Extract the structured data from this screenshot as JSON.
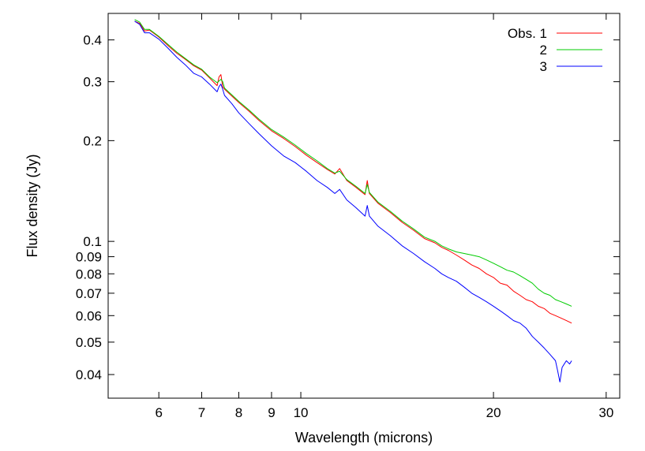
{
  "chart_data": {
    "type": "line",
    "title": "",
    "xlabel": "Wavelength (microns)",
    "ylabel": "Flux density (Jy)",
    "xscale": "log",
    "yscale": "log",
    "xlim": [
      5.0,
      31.5
    ],
    "ylim": [
      0.034,
      0.48
    ],
    "grid": false,
    "legend_position": "top-right",
    "xticks": [
      {
        "value": 6,
        "label": "6"
      },
      {
        "value": 7,
        "label": "7"
      },
      {
        "value": 8,
        "label": "8"
      },
      {
        "value": 9,
        "label": "9"
      },
      {
        "value": 10,
        "label": "10"
      },
      {
        "value": 20,
        "label": "20"
      },
      {
        "value": 30,
        "label": "30"
      }
    ],
    "yticks": [
      {
        "value": 0.04,
        "label": "0.04"
      },
      {
        "value": 0.05,
        "label": "0.05"
      },
      {
        "value": 0.06,
        "label": "0.06"
      },
      {
        "value": 0.07,
        "label": "0.07"
      },
      {
        "value": 0.08,
        "label": "0.08"
      },
      {
        "value": 0.09,
        "label": "0.09"
      },
      {
        "value": 0.1,
        "label": "0.1"
      },
      {
        "value": 0.2,
        "label": "0.2"
      },
      {
        "value": 0.3,
        "label": "0.3"
      },
      {
        "value": 0.4,
        "label": "0.4"
      }
    ],
    "series": [
      {
        "name": "Obs. 1",
        "color": "#ff0000",
        "x": [
          5.5,
          5.6,
          5.7,
          5.8,
          6.0,
          6.2,
          6.4,
          6.6,
          6.8,
          7.0,
          7.2,
          7.4,
          7.45,
          7.5,
          7.55,
          7.6,
          7.8,
          8.0,
          8.3,
          8.6,
          9.0,
          9.4,
          9.8,
          10.2,
          10.6,
          11.0,
          11.3,
          11.5,
          11.8,
          12.2,
          12.6,
          12.7,
          12.8,
          13.2,
          13.8,
          14.4,
          15.0,
          15.6,
          16.2,
          16.6,
          17.0,
          17.5,
          18.0,
          18.5,
          19.0,
          19.5,
          20.0,
          20.5,
          21.0,
          21.5,
          22.0,
          22.5,
          23.0,
          23.5,
          24.0,
          24.5,
          25.0,
          25.5,
          26.0,
          26.5
        ],
        "y": [
          0.455,
          0.448,
          0.425,
          0.428,
          0.408,
          0.385,
          0.365,
          0.35,
          0.335,
          0.325,
          0.308,
          0.292,
          0.31,
          0.315,
          0.29,
          0.285,
          0.272,
          0.26,
          0.245,
          0.23,
          0.214,
          0.203,
          0.192,
          0.181,
          0.172,
          0.164,
          0.159,
          0.165,
          0.152,
          0.145,
          0.138,
          0.152,
          0.139,
          0.13,
          0.122,
          0.114,
          0.108,
          0.102,
          0.099,
          0.096,
          0.094,
          0.091,
          0.088,
          0.085,
          0.083,
          0.08,
          0.078,
          0.075,
          0.074,
          0.071,
          0.069,
          0.067,
          0.066,
          0.064,
          0.063,
          0.061,
          0.06,
          0.059,
          0.058,
          0.057
        ]
      },
      {
        "name": "2",
        "color": "#00cc00",
        "x": [
          5.5,
          5.6,
          5.7,
          5.8,
          6.0,
          6.2,
          6.4,
          6.6,
          6.8,
          7.0,
          7.2,
          7.4,
          7.5,
          7.55,
          7.6,
          7.8,
          8.0,
          8.3,
          8.6,
          9.0,
          9.4,
          9.8,
          10.2,
          10.6,
          11.0,
          11.3,
          11.5,
          11.8,
          12.2,
          12.6,
          12.7,
          12.8,
          13.2,
          13.8,
          14.4,
          15.0,
          15.6,
          16.2,
          16.6,
          17.0,
          17.5,
          18.0,
          18.5,
          19.0,
          19.5,
          20.0,
          20.5,
          21.0,
          21.5,
          22.0,
          22.5,
          23.0,
          23.5,
          24.0,
          24.5,
          25.0,
          25.5,
          26.0,
          26.5
        ],
        "y": [
          0.46,
          0.452,
          0.43,
          0.43,
          0.41,
          0.388,
          0.368,
          0.352,
          0.337,
          0.327,
          0.31,
          0.298,
          0.305,
          0.3,
          0.287,
          0.274,
          0.262,
          0.247,
          0.232,
          0.216,
          0.205,
          0.194,
          0.183,
          0.174,
          0.165,
          0.16,
          0.162,
          0.153,
          0.146,
          0.139,
          0.148,
          0.14,
          0.131,
          0.123,
          0.115,
          0.109,
          0.103,
          0.1,
          0.097,
          0.095,
          0.093,
          0.092,
          0.091,
          0.09,
          0.088,
          0.086,
          0.084,
          0.082,
          0.081,
          0.079,
          0.077,
          0.075,
          0.072,
          0.07,
          0.069,
          0.067,
          0.066,
          0.065,
          0.064
        ]
      },
      {
        "name": "3",
        "color": "#0000ff",
        "x": [
          5.5,
          5.6,
          5.7,
          5.8,
          6.0,
          6.2,
          6.4,
          6.6,
          6.8,
          7.0,
          7.2,
          7.4,
          7.45,
          7.5,
          7.55,
          7.6,
          7.8,
          8.0,
          8.3,
          8.6,
          9.0,
          9.4,
          9.8,
          10.2,
          10.6,
          11.0,
          11.3,
          11.5,
          11.8,
          12.2,
          12.6,
          12.7,
          12.8,
          13.2,
          13.8,
          14.4,
          15.0,
          15.6,
          16.2,
          16.6,
          17.0,
          17.5,
          18.0,
          18.5,
          19.0,
          19.5,
          20.0,
          20.5,
          21.0,
          21.5,
          22.0,
          22.5,
          23.0,
          23.5,
          24.0,
          24.5,
          25.0,
          25.2,
          25.4,
          25.6,
          25.8,
          26.0,
          26.3,
          26.5
        ],
        "y": [
          0.455,
          0.445,
          0.42,
          0.42,
          0.402,
          0.378,
          0.355,
          0.337,
          0.318,
          0.31,
          0.295,
          0.28,
          0.29,
          0.295,
          0.285,
          0.273,
          0.258,
          0.242,
          0.225,
          0.21,
          0.193,
          0.18,
          0.172,
          0.162,
          0.152,
          0.145,
          0.139,
          0.143,
          0.133,
          0.126,
          0.119,
          0.128,
          0.119,
          0.111,
          0.104,
          0.097,
          0.092,
          0.087,
          0.083,
          0.08,
          0.078,
          0.076,
          0.073,
          0.07,
          0.068,
          0.066,
          0.064,
          0.062,
          0.06,
          0.058,
          0.057,
          0.055,
          0.052,
          0.05,
          0.048,
          0.046,
          0.044,
          0.041,
          0.038,
          0.042,
          0.043,
          0.044,
          0.043,
          0.044
        ]
      }
    ]
  }
}
